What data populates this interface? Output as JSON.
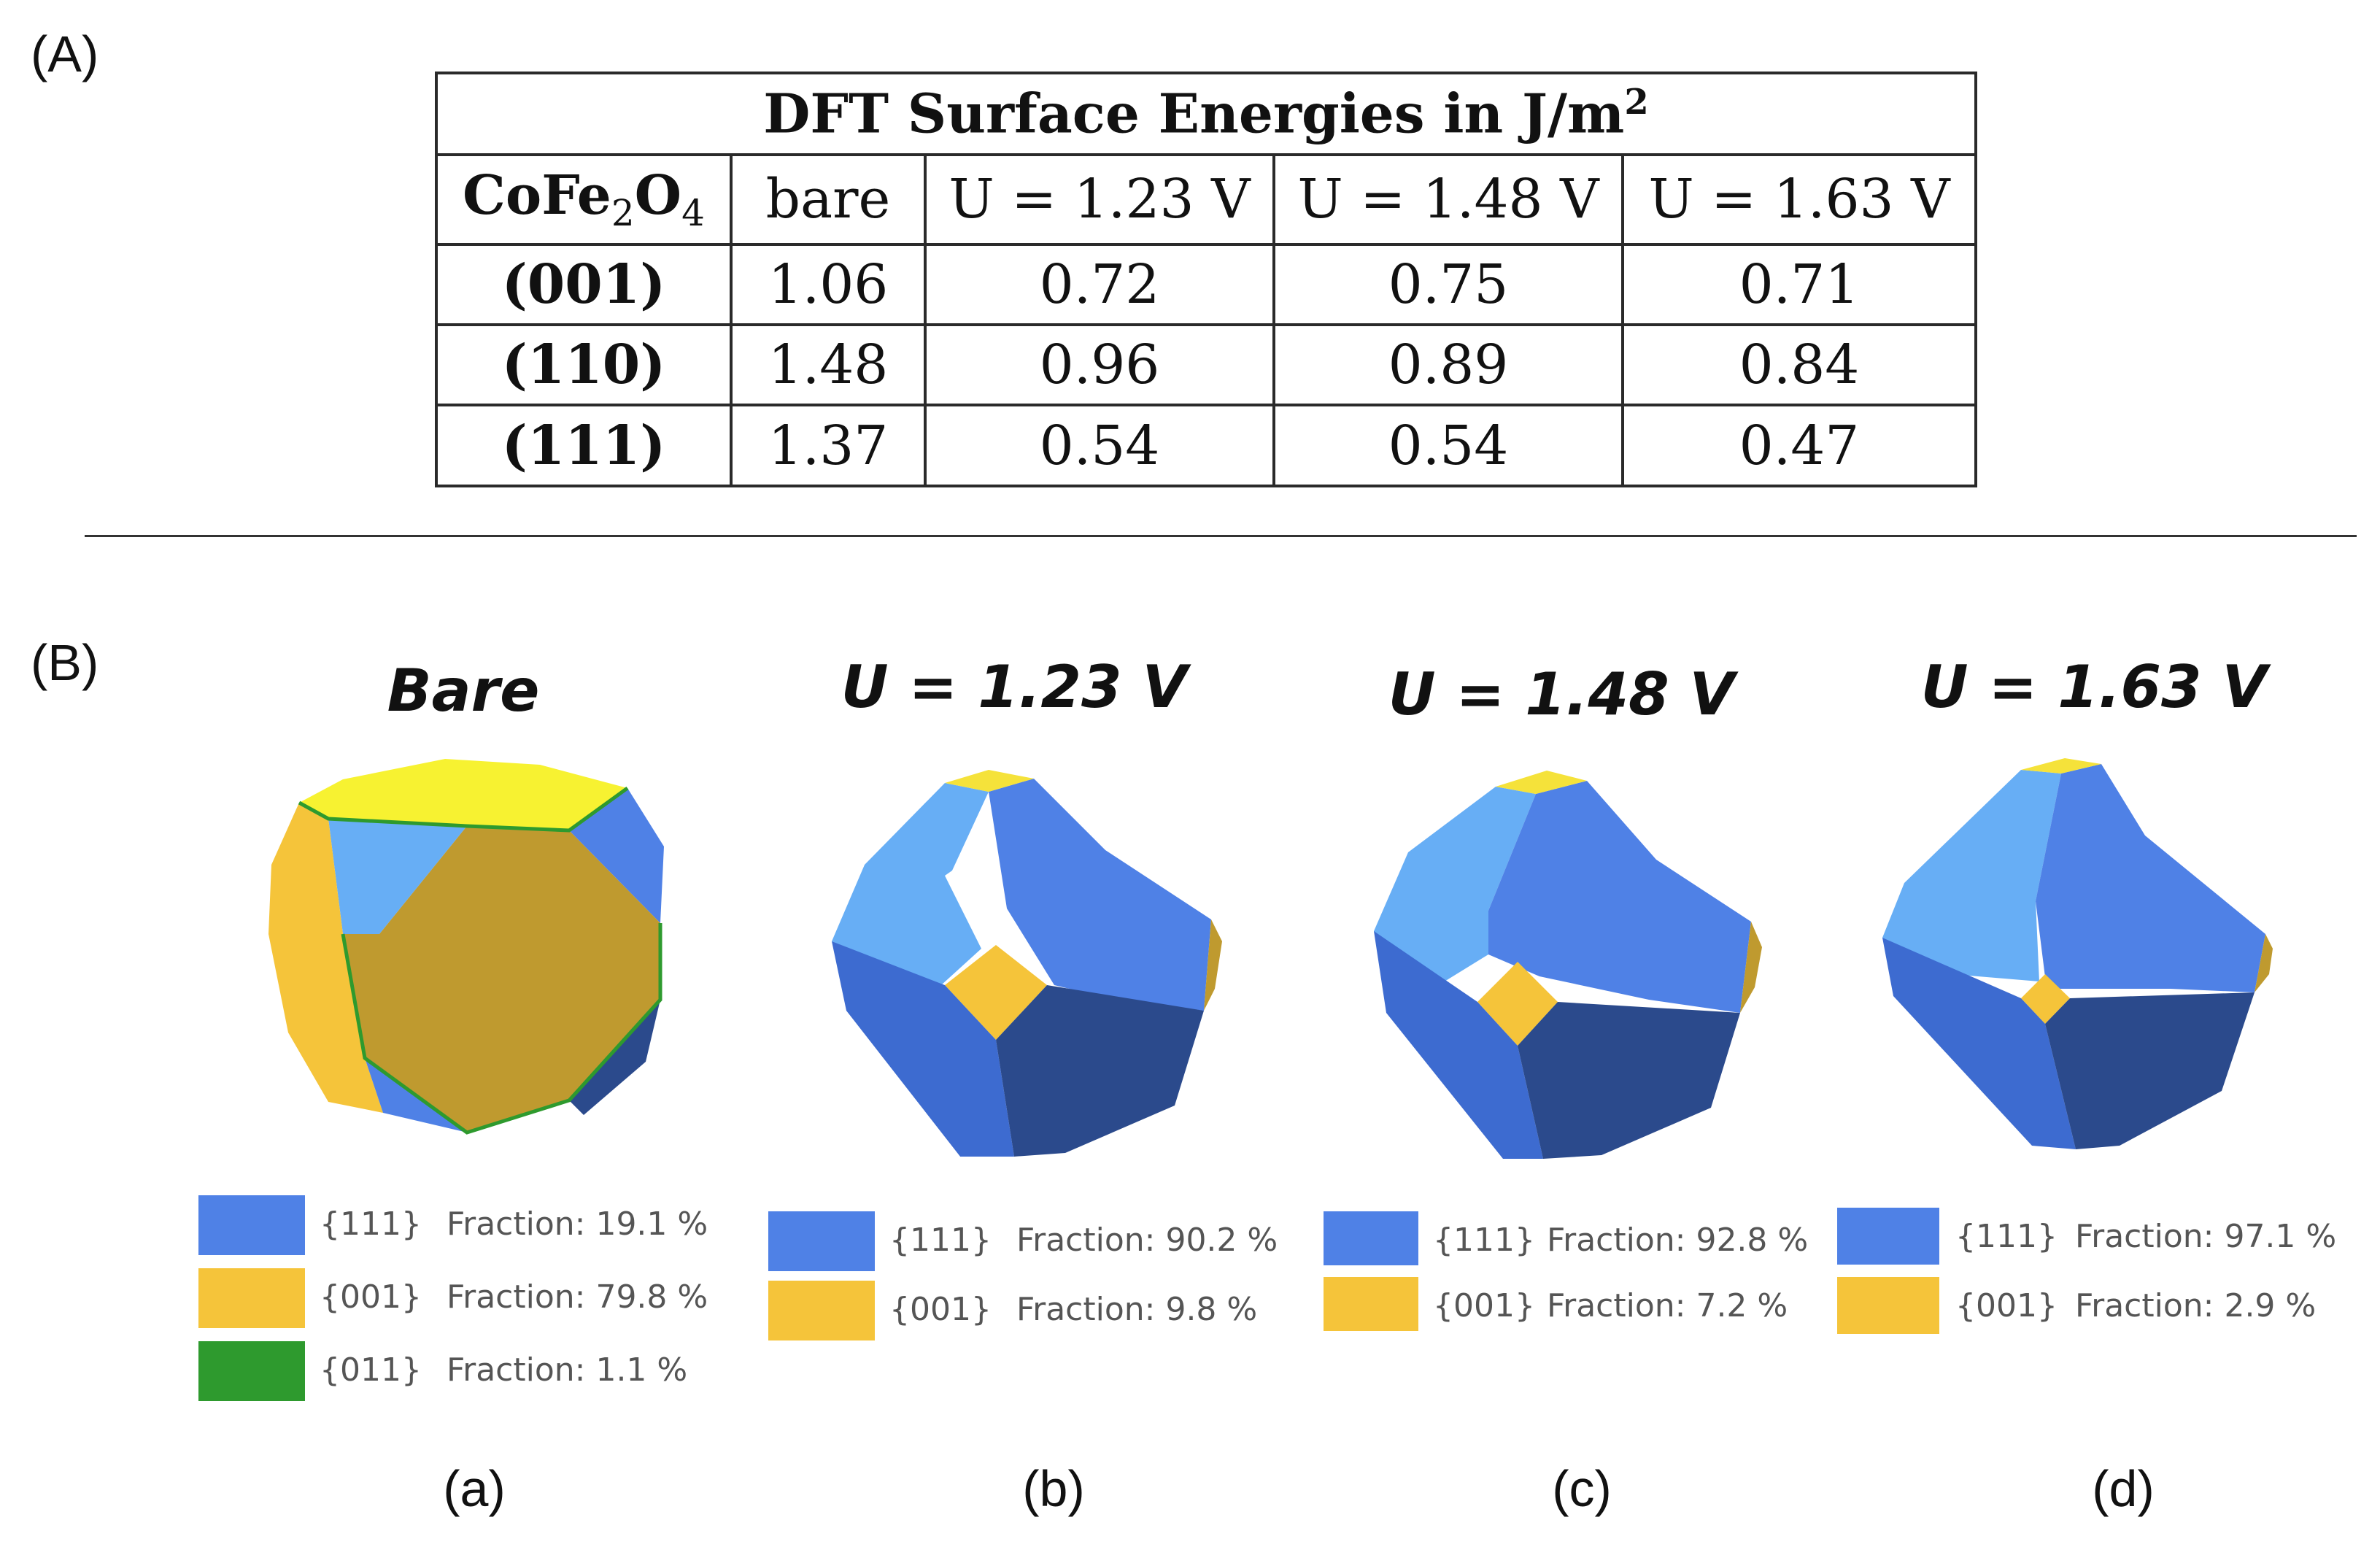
{
  "panel_a_label": "(A)",
  "panel_b_label": "(B)",
  "table": {
    "title": "DFT Surface Energies in J/m",
    "title_sup": "2",
    "corner": {
      "pre": "CoFe",
      "sub1": "2",
      "mid": "O",
      "sub2": "4"
    },
    "columns": [
      "bare",
      "U = 1.23 V",
      "U = 1.48 V",
      "U = 1.63 V"
    ],
    "rows": [
      {
        "facet": "(001)",
        "values": [
          "1.06",
          "0.72",
          "0.75",
          "0.71"
        ]
      },
      {
        "facet": "(110)",
        "values": [
          "1.48",
          "0.96",
          "0.89",
          "0.84"
        ]
      },
      {
        "facet": "(111)",
        "values": [
          "1.37",
          "0.54",
          "0.54",
          "0.47"
        ]
      }
    ]
  },
  "colors": {
    "f111": "#4f81e6",
    "f001": "#f5c43a",
    "f011": "#2e9a2e"
  },
  "shapes": [
    {
      "title": "Bare",
      "sublabel": "(a)",
      "legend": [
        {
          "miller": "{111}",
          "fraction": "Fraction: 19.1 %",
          "color": "#4f81e6"
        },
        {
          "miller": "{001}",
          "fraction": "Fraction: 79.8 %",
          "color": "#f5c43a"
        },
        {
          "miller": "{011}",
          "fraction": "Fraction: 1.1 %",
          "color": "#2e9a2e"
        }
      ]
    },
    {
      "title": "U = 1.23 V",
      "sublabel": "(b)",
      "legend": [
        {
          "miller": "{111}",
          "fraction": "Fraction: 90.2 %",
          "color": "#4f81e6"
        },
        {
          "miller": "{001}",
          "fraction": "Fraction: 9.8 %",
          "color": "#f5c43a"
        }
      ]
    },
    {
      "title": "U = 1.48 V",
      "sublabel": "(c)",
      "legend": [
        {
          "miller": "{111}",
          "fraction": "Fraction: 92.8 %",
          "color": "#4f81e6"
        },
        {
          "miller": "{001}",
          "fraction": "Fraction: 7.2 %",
          "color": "#f5c43a"
        }
      ]
    },
    {
      "title": "U = 1.63 V",
      "sublabel": "(d)",
      "legend": [
        {
          "miller": "{111}",
          "fraction": "Fraction: 97.1 %",
          "color": "#4f81e6"
        },
        {
          "miller": "{001}",
          "fraction": "Fraction: 2.9 %",
          "color": "#f5c43a"
        }
      ]
    }
  ]
}
